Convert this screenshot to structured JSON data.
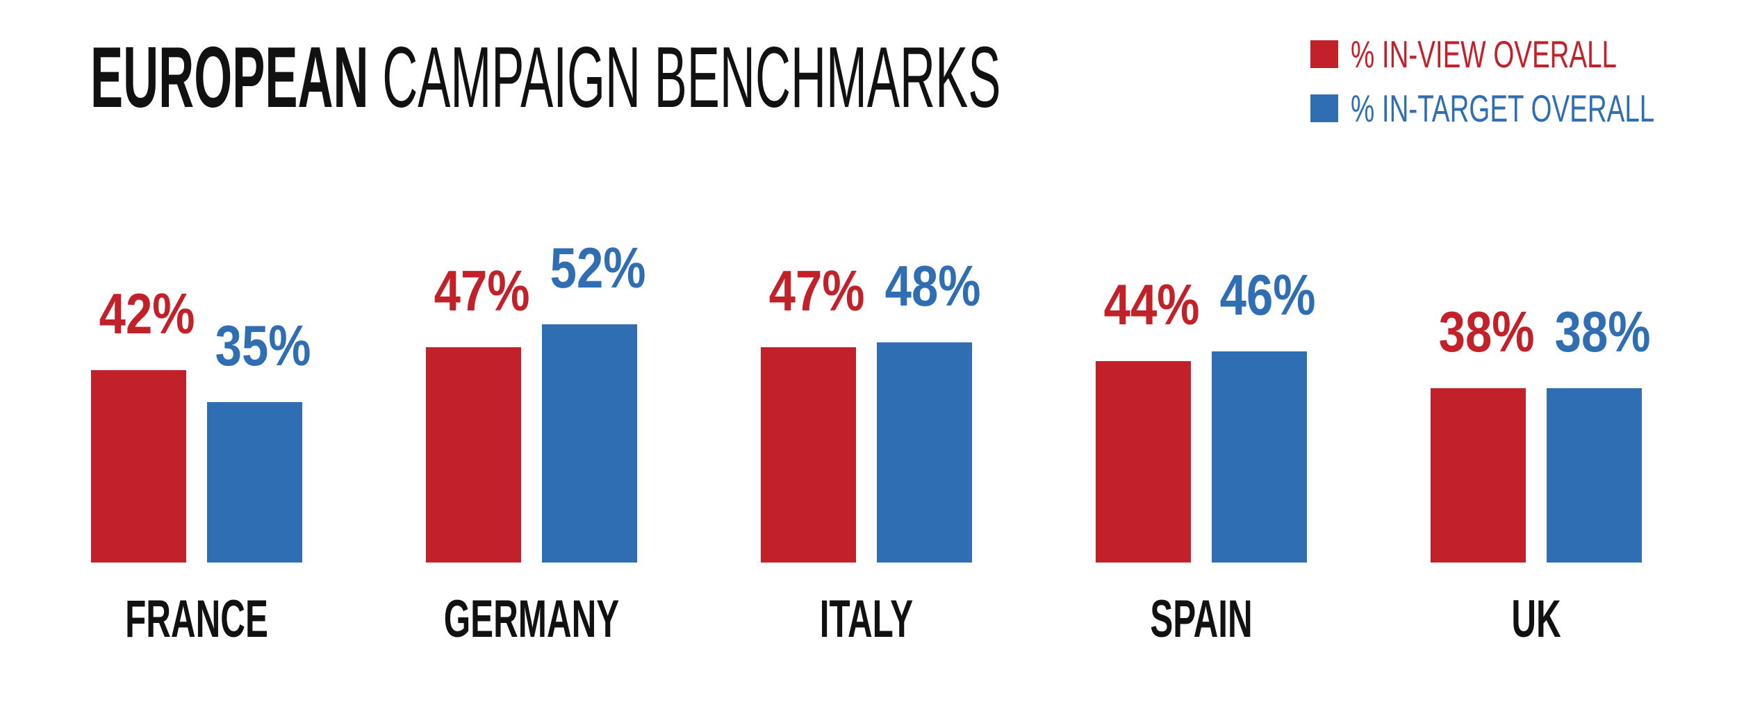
{
  "page": {
    "background": "#ffffff"
  },
  "title": {
    "bold": "EUROPEAN",
    "rest": " CAMPAIGN BENCHMARKS",
    "full": "EUROPEAN CAMPAIGN BENCHMARKS"
  },
  "legend": [
    {
      "label": "% IN-VIEW OVERALL",
      "color": "#C2212A",
      "swatch": "red-square-icon"
    },
    {
      "label": "% IN-TARGET OVERALL",
      "color": "#2F6EB3",
      "swatch": "blue-square-icon"
    }
  ],
  "chart_data": {
    "type": "bar",
    "title": "EUROPEAN CAMPAIGN BENCHMARKS",
    "categories": [
      "FRANCE",
      "GERMANY",
      "ITALY",
      "SPAIN",
      "UK"
    ],
    "series": [
      {
        "name": "% IN-VIEW OVERALL",
        "color": "#C2212A",
        "values": [
          42,
          47,
          47,
          44,
          38
        ]
      },
      {
        "name": "% IN-TARGET OVERALL",
        "color": "#2F6EB3",
        "values": [
          35,
          52,
          48,
          46,
          38
        ]
      }
    ],
    "value_suffix": "%",
    "data_labels": true,
    "ylim": [
      0,
      55
    ],
    "grid": false,
    "axes_visible": false,
    "legend_position": "top-right",
    "bar_label_colors_match_series": true
  }
}
